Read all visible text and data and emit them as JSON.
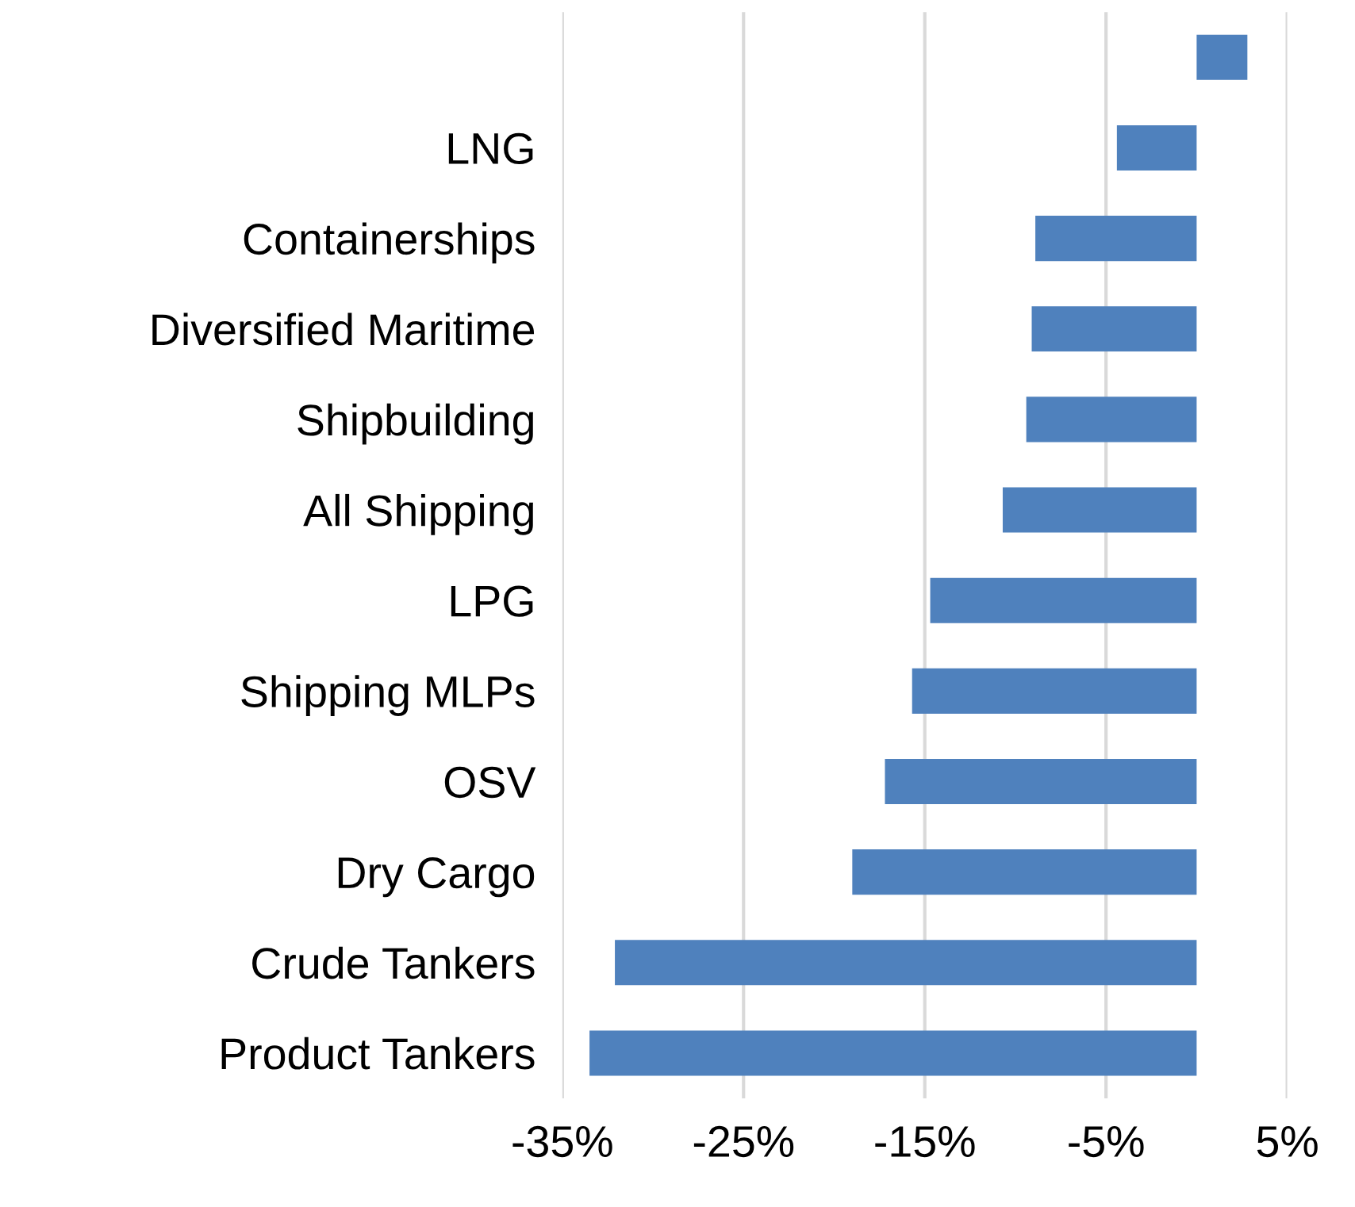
{
  "chart_data": {
    "type": "bar",
    "orientation": "horizontal",
    "categories": [
      null,
      "LNG",
      "Containerships",
      "Diversified Maritime",
      "Shipbuilding",
      "All Shipping",
      "LPG",
      "Shipping MLPs",
      "OSV",
      "Dry Cargo",
      "Crude Tankers",
      "Product Tankers"
    ],
    "values": [
      2.8,
      -4.4,
      -8.9,
      -9.1,
      -9.4,
      -10.7,
      -14.7,
      -15.7,
      -17.2,
      -19.0,
      -32.1,
      -33.5
    ],
    "color": "#4f81bd",
    "xlim": [
      -35,
      5
    ],
    "xticks": [
      {
        "value": -35,
        "label": "-35%"
      },
      {
        "value": -25,
        "label": "-25%"
      },
      {
        "value": -15,
        "label": "-15%"
      },
      {
        "value": -5,
        "label": "-5%"
      },
      {
        "value": 5,
        "label": "5%"
      }
    ],
    "grid": "x"
  }
}
